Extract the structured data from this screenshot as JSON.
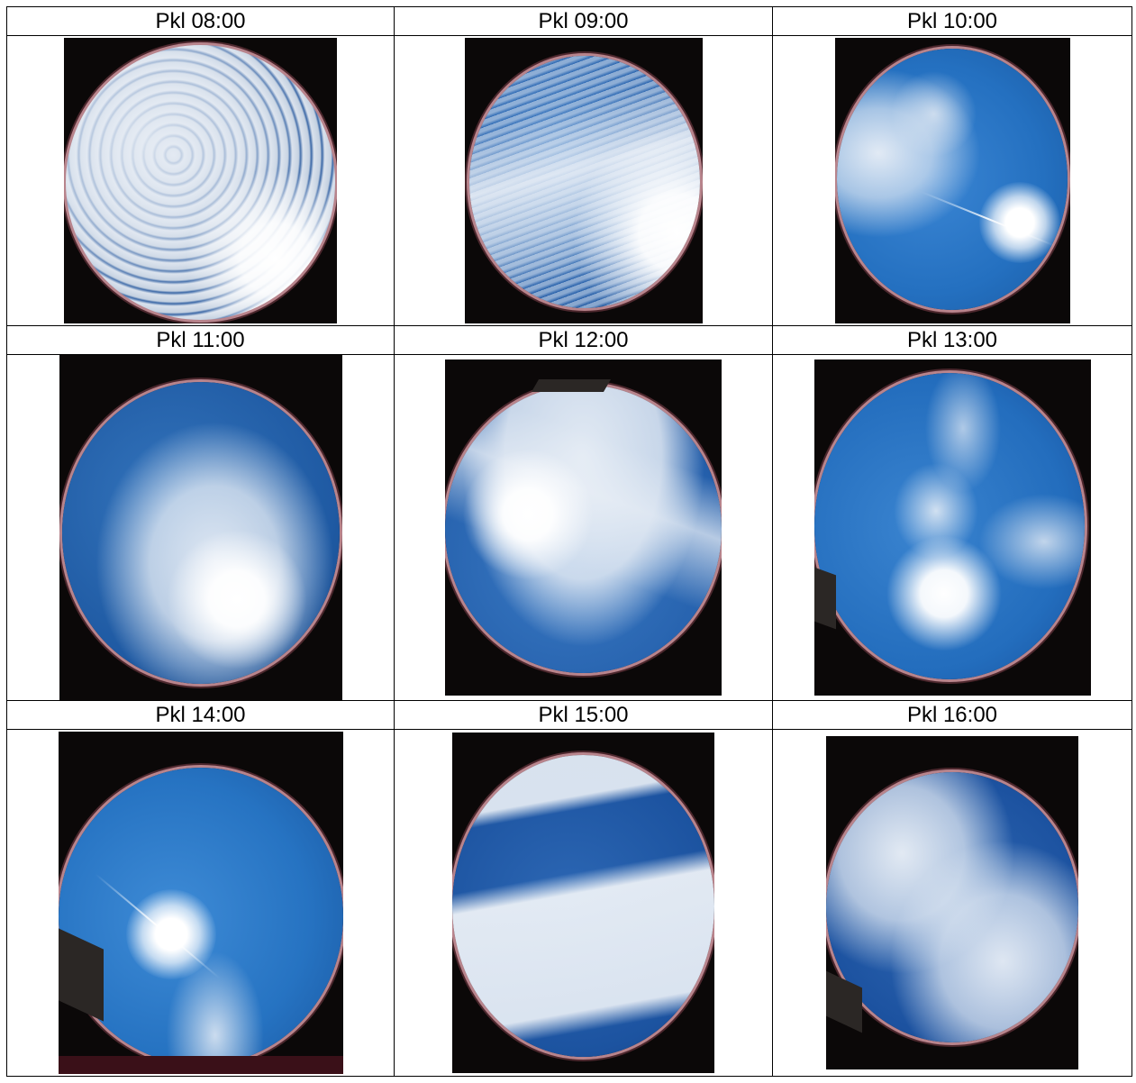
{
  "table": {
    "rows": [
      {
        "cells": [
          {
            "label": "Pkl 08:00",
            "icon": "sky-photo-0800"
          },
          {
            "label": "Pkl 09:00",
            "icon": "sky-photo-0900"
          },
          {
            "label": "Pkl 10:00",
            "icon": "sky-photo-1000"
          }
        ]
      },
      {
        "cells": [
          {
            "label": "Pkl 11:00",
            "icon": "sky-photo-1100"
          },
          {
            "label": "Pkl 12:00",
            "icon": "sky-photo-1200"
          },
          {
            "label": "Pkl 13:00",
            "icon": "sky-photo-1300"
          }
        ]
      },
      {
        "cells": [
          {
            "label": "Pkl 14:00",
            "icon": "sky-photo-1400"
          },
          {
            "label": "Pkl 15:00",
            "icon": "sky-photo-1500"
          },
          {
            "label": "Pkl 16:00",
            "icon": "sky-photo-1600"
          }
        ]
      }
    ]
  },
  "colors": {
    "sky_blue": "#2f6fb8",
    "sky_deep": "#174e96",
    "cloud": "#e9eef4",
    "frame": "#0b0808",
    "lens_rim": "#b8848c"
  }
}
